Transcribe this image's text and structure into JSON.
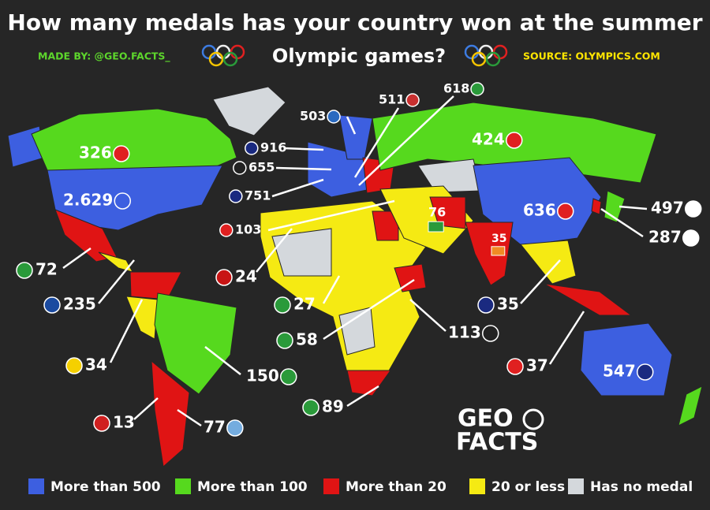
{
  "header": {
    "title_line1": "How many medals has your country won at the summer",
    "title_line2": "Olympic games?",
    "made_by": "MADE BY: @GEO.FACTS_",
    "source": "SOURCE: OLYMPICS.COM"
  },
  "labels": [
    {
      "text": "326"
    },
    {
      "text": "2.629"
    },
    {
      "text": "424"
    },
    {
      "text": "636"
    },
    {
      "text": "76"
    },
    {
      "text": "35"
    },
    {
      "text": "547"
    },
    {
      "text": "916"
    },
    {
      "text": "655"
    },
    {
      "text": "751"
    },
    {
      "text": "103"
    },
    {
      "text": "24"
    },
    {
      "text": "72"
    },
    {
      "text": "235"
    },
    {
      "text": "34"
    },
    {
      "text": "13"
    },
    {
      "text": "77"
    },
    {
      "text": "150"
    },
    {
      "text": "89"
    },
    {
      "text": "27"
    },
    {
      "text": "58"
    },
    {
      "text": "113"
    },
    {
      "text": "35"
    },
    {
      "text": "37"
    },
    {
      "text": "497"
    },
    {
      "text": "287"
    },
    {
      "text": "503"
    },
    {
      "text": "511"
    },
    {
      "text": "618"
    }
  ],
  "logo": {
    "line1": "GEO",
    "line2": "FACTS"
  },
  "legend": [
    {
      "label": "More than 500",
      "color": "#3d5fe0"
    },
    {
      "label": "More than 100",
      "color": "#56d91e"
    },
    {
      "label": "More than 20",
      "color": "#e01414"
    },
    {
      "label": "20 or less",
      "color": "#f5ea13"
    },
    {
      "label": "Has no medal",
      "color": "#d4d8dc"
    }
  ]
}
